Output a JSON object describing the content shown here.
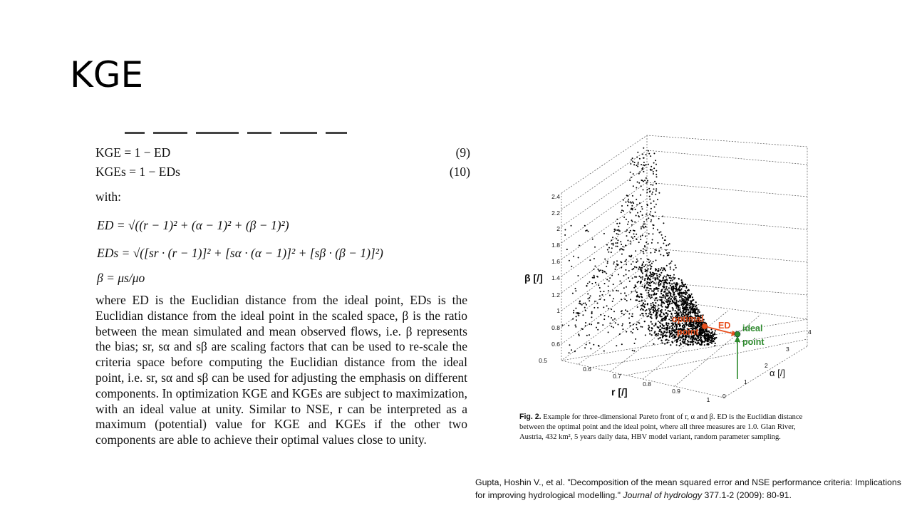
{
  "slide": {
    "title": "KGE"
  },
  "paper": {
    "equations": [
      {
        "lhs": "KGE",
        "rhs": "= 1 − ED",
        "number": "(9)"
      },
      {
        "lhs": "KGEs",
        "rhs": "= 1 − EDs",
        "number": "(10)"
      }
    ],
    "with_label": "with:",
    "formulas": [
      "ED = √((r − 1)² + (α − 1)² + (β − 1)²)",
      "EDs = √([sr · (r − 1)]² + [sα · (α − 1)]² + [sβ · (β − 1)]²)",
      "β = μs/μo"
    ],
    "paragraph": "where ED is the Euclidian distance from the ideal point, EDs is the Euclidian distance from the ideal point in the scaled space, β is the ratio between the mean simulated and mean observed flows, i.e. β represents the bias; sr, sα and sβ are scaling factors that can be used to re-scale the criteria space before computing the Euclidian distance from the ideal point, i.e. sr, sα and sβ can be used for adjusting the emphasis on different components. In optimization KGE and KGEs are subject to maximization, with an ideal value at unity. Similar to NSE, r can be interpreted as a maximum (potential) value for KGE and KGEs if the other two components are able to achieve their optimal values close to unity."
  },
  "figure": {
    "z_label": "β [/]",
    "x_label": "r [/]",
    "y_label": "α [/]",
    "z_ticks": [
      "0.5",
      "0.6",
      "0.8",
      "1",
      "1.2",
      "1.4",
      "1.6",
      "1.8",
      "2",
      "2.2",
      "2.4"
    ],
    "x_ticks": [
      "0.6",
      "0.7",
      "0.8",
      "0.9",
      "1"
    ],
    "y_ticks": [
      "0",
      "1",
      "2",
      "3",
      "4"
    ],
    "optimal_label_1": "optimal",
    "optimal_label_2": "point",
    "ed_label": "ED",
    "ideal_label_1": "ideal",
    "ideal_label_2": "point",
    "colors": {
      "optimal": "#e8501e",
      "ideal": "#2e8b2e",
      "points": "#000000"
    },
    "caption_label": "Fig. 2.",
    "caption_text": "Example for three-dimensional Pareto front of r, α and β. ED is the Euclidian distance between the optimal point and the ideal point, where all three measures are 1.0. Glan River, Austria, 432 km², 5 years daily data, HBV model variant, random parameter sampling."
  },
  "citation": {
    "text": "Gupta, Hoshin V., et al. \"Decomposition of the mean squared error and NSE performance criteria: Implications for improving hydrological modelling.\"",
    "journal": "Journal of hydrology",
    "rest": " 377.1-2 (2009): 80-91."
  }
}
